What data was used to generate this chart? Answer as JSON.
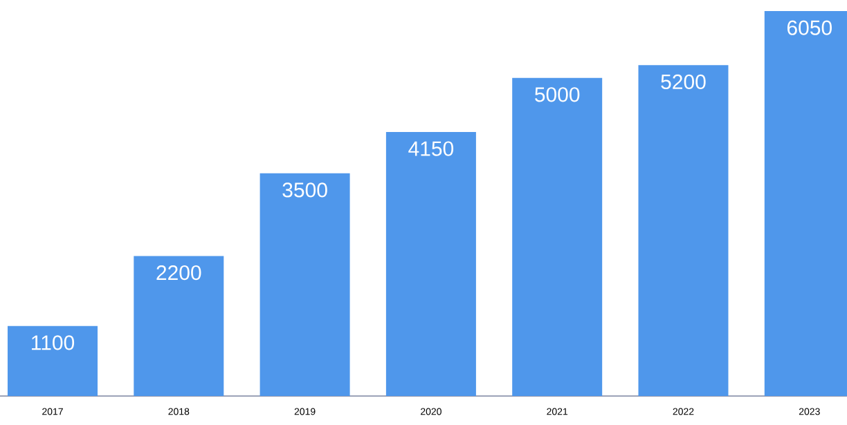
{
  "chart_data": {
    "type": "bar",
    "categories": [
      "2017",
      "2018",
      "2019",
      "2020",
      "2021",
      "2022",
      "2023"
    ],
    "values": [
      1100,
      2200,
      3500,
      4150,
      5000,
      5200,
      6050
    ],
    "color": "#4f97eb",
    "data_labels": true
  }
}
